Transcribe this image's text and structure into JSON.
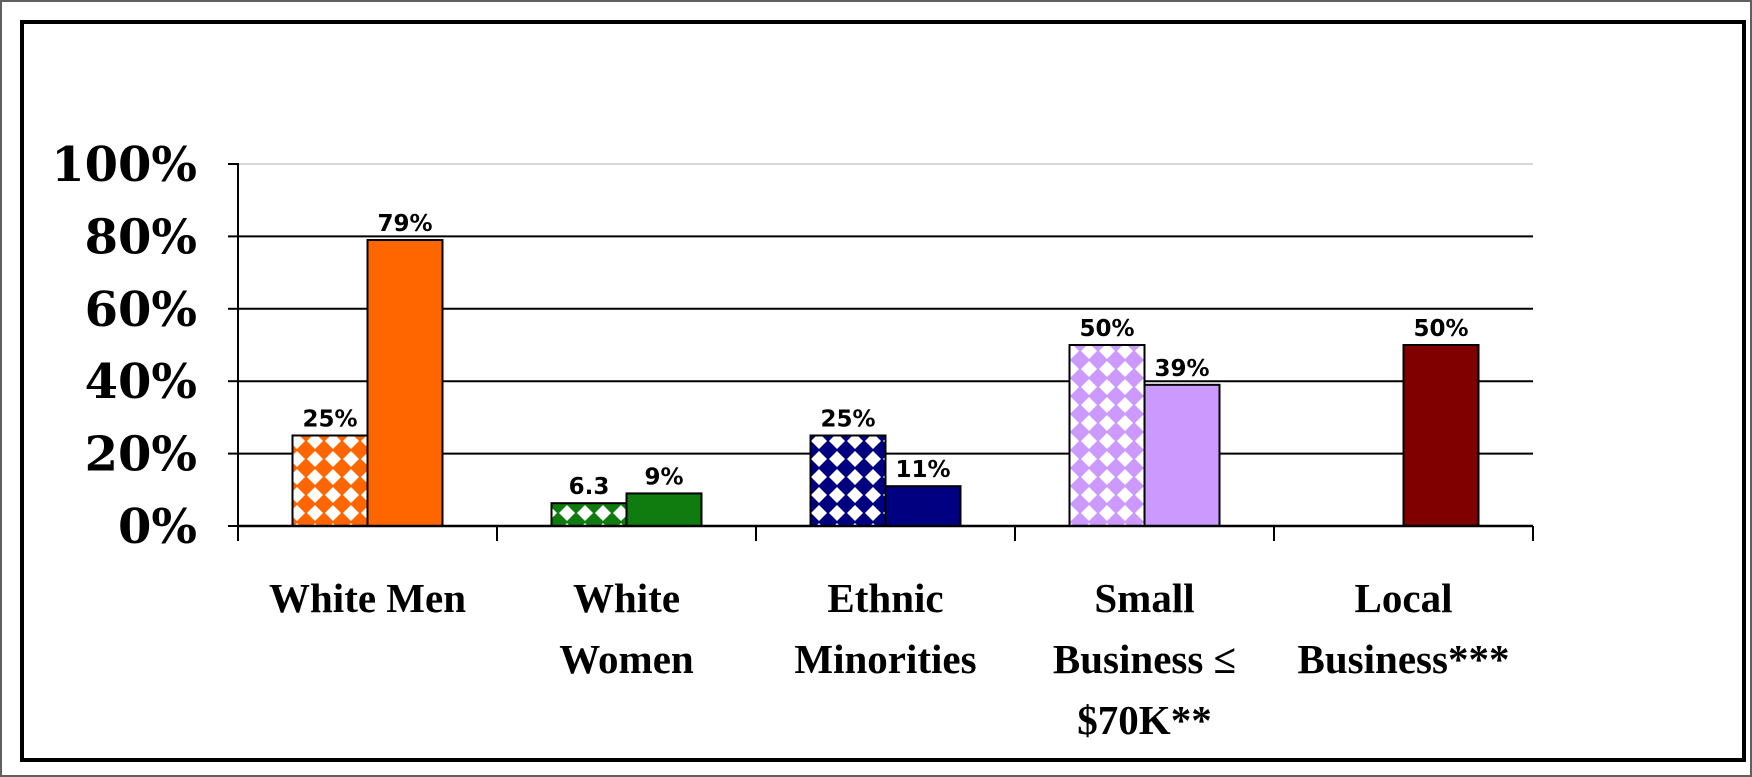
{
  "chart_data": {
    "type": "bar",
    "categories": [
      [
        "White Men"
      ],
      [
        "White",
        "Women"
      ],
      [
        "Ethnic",
        "Minorities"
      ],
      [
        "Small",
        "Business ≤",
        "$70K**"
      ],
      [
        "Local",
        "Business***"
      ]
    ],
    "series": [
      {
        "values": [
          25,
          6.3,
          25,
          50,
          null
        ],
        "pattern": "diamond-check",
        "labels": [
          "25%",
          "6.3",
          "25%",
          "50%",
          ""
        ]
      },
      {
        "values": [
          79,
          9,
          11,
          39,
          50
        ],
        "pattern": "solid",
        "labels": [
          "79%",
          "9%",
          "11%",
          "39%",
          "50%"
        ]
      }
    ],
    "colors": [
      "#FF6600",
      "#107C10",
      "#000080",
      "#CC99FF",
      "#800000"
    ],
    "yticks": [
      "0%",
      "20%",
      "40%",
      "60%",
      "80%",
      "100%"
    ],
    "ylim": [
      0,
      100
    ],
    "grid": true,
    "title": "",
    "xlabel": "",
    "ylabel": ""
  }
}
